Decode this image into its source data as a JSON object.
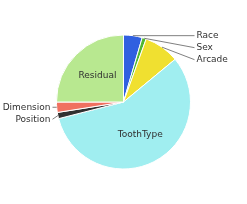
{
  "chart_data": {
    "type": "pie",
    "categories": [
      "Race",
      "Sex",
      "Arcade",
      "ToothType",
      "Position",
      "Dimension",
      "Residual"
    ],
    "values": [
      4.5,
      1.0,
      8.5,
      57,
      1.5,
      2.5,
      25
    ],
    "colors": [
      "#3060e0",
      "#50b830",
      "#f0e030",
      "#a0eef0",
      "#303030",
      "#f07060",
      "#b8e890"
    ]
  }
}
